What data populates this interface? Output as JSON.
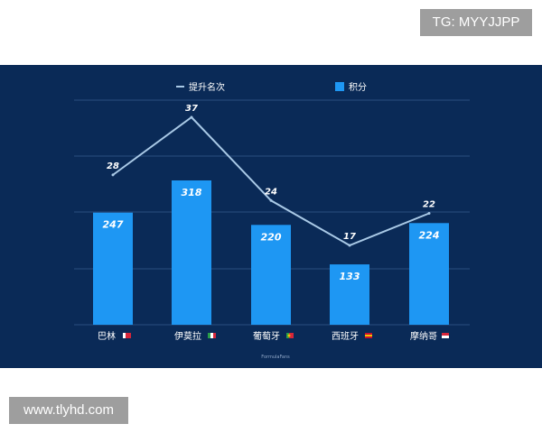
{
  "watermark_top": "TG: MYYJJPP",
  "watermark_bottom": "www.tlyhd.com",
  "source_credit": "FormulaFans",
  "colors": {
    "background": "#0a2a57",
    "bar": "#1e97f3",
    "line": "#a9c9e6",
    "grid": "#2b4d7f",
    "text": "#ffffff",
    "watermark_bg": "#9e9e9e"
  },
  "chart_data": {
    "type": "bar",
    "categories": [
      "巴林",
      "伊莫拉",
      "葡萄牙",
      "西班牙",
      "摩纳哥"
    ],
    "series": [
      {
        "name": "积分",
        "type": "bar",
        "values": [
          247,
          318,
          220,
          133,
          224
        ]
      },
      {
        "name": "提升名次",
        "type": "line",
        "values": [
          28,
          37,
          24,
          17,
          22
        ]
      }
    ],
    "legend": [
      "提升名次",
      "积分"
    ],
    "legend_placement": "top-center",
    "grid": true,
    "title": "",
    "xlabel": "",
    "ylabel": ""
  }
}
